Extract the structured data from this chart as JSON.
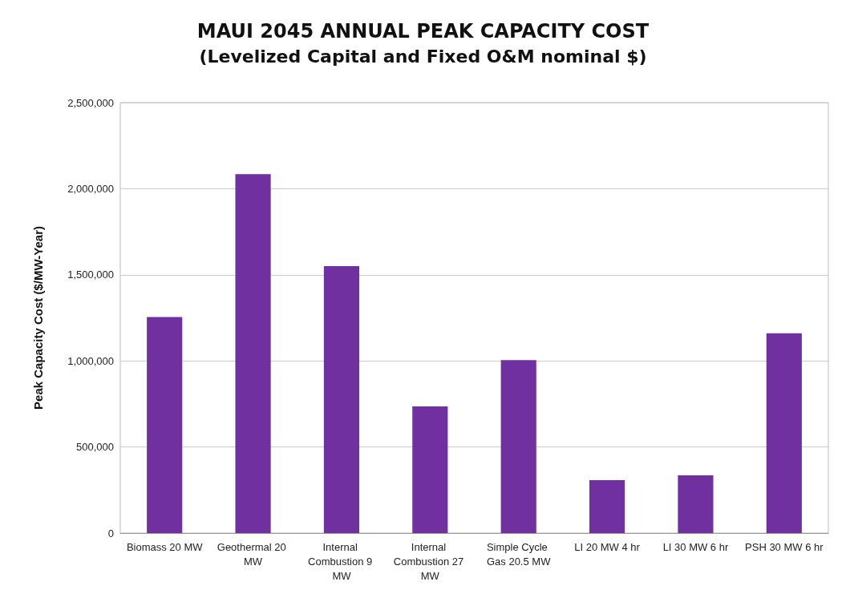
{
  "chart_data": {
    "type": "bar",
    "title": "MAUI 2045 ANNUAL PEAK CAPACITY COST",
    "subtitle": "(Levelized Capital and Fixed O&M nominal $)",
    "ylabel": "Peak Capacity Cost ($/MW-Year)",
    "categories": [
      "Biomass 20 MW",
      "Geothermal 20 MW",
      "Internal Combustion 9 MW",
      "Internal Combustion 27 MW",
      "Simple Cycle Gas 20.5 MW",
      "LI 20 MW 4 hr",
      "LI 30 MW 6 hr",
      "PSH 30 MW 6 hr"
    ],
    "values": [
      1255000,
      2085000,
      1550000,
      735000,
      1005000,
      307000,
      335000,
      1160000
    ],
    "color": "#7030a0",
    "ylim": [
      0,
      2500000
    ],
    "yticks": [
      0,
      {
        "value": 500000,
        "label": "500,000"
      },
      {
        "value": 1000000,
        "label": "1,000,000"
      },
      {
        "value": 1500000,
        "label": "1,500,000"
      },
      {
        "value": 2000000,
        "label": "2,000,000"
      },
      {
        "value": 2500000,
        "label": "2,500,000"
      }
    ],
    "grid": "y"
  }
}
